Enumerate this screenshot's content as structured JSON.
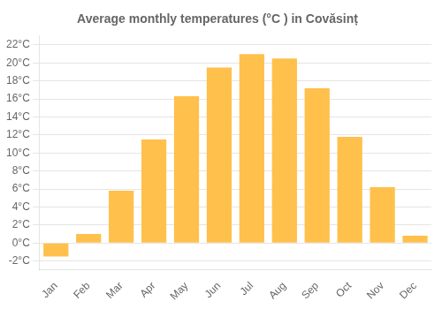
{
  "chart_data": {
    "type": "bar",
    "title": "Average monthly temperatures (°C ) in Covăsinț",
    "categories": [
      "Jan",
      "Feb",
      "Mar",
      "Apr",
      "May",
      "Jun",
      "Jul",
      "Aug",
      "Sep",
      "Oct",
      "Nov",
      "Dec"
    ],
    "values": [
      -1.5,
      1.0,
      5.8,
      11.5,
      16.3,
      19.5,
      21.0,
      20.5,
      17.2,
      11.8,
      6.2,
      0.8
    ],
    "color": "#FFC04C",
    "ylim": [
      -3,
      23
    ],
    "yticks": [
      {
        "value": -2,
        "label": "-2°C"
      },
      {
        "value": 0,
        "label": "0°C"
      },
      {
        "value": 2,
        "label": "2°C"
      },
      {
        "value": 4,
        "label": "4°C"
      },
      {
        "value": 6,
        "label": "6°C"
      },
      {
        "value": 8,
        "label": "8°C"
      },
      {
        "value": 10,
        "label": "10°C"
      },
      {
        "value": 12,
        "label": "12°C"
      },
      {
        "value": 14,
        "label": "14°C"
      },
      {
        "value": 16,
        "label": "16°C"
      },
      {
        "value": 18,
        "label": "18°C"
      },
      {
        "value": 20,
        "label": "20°C"
      },
      {
        "value": 22,
        "label": "22°C"
      }
    ],
    "grid": true
  }
}
